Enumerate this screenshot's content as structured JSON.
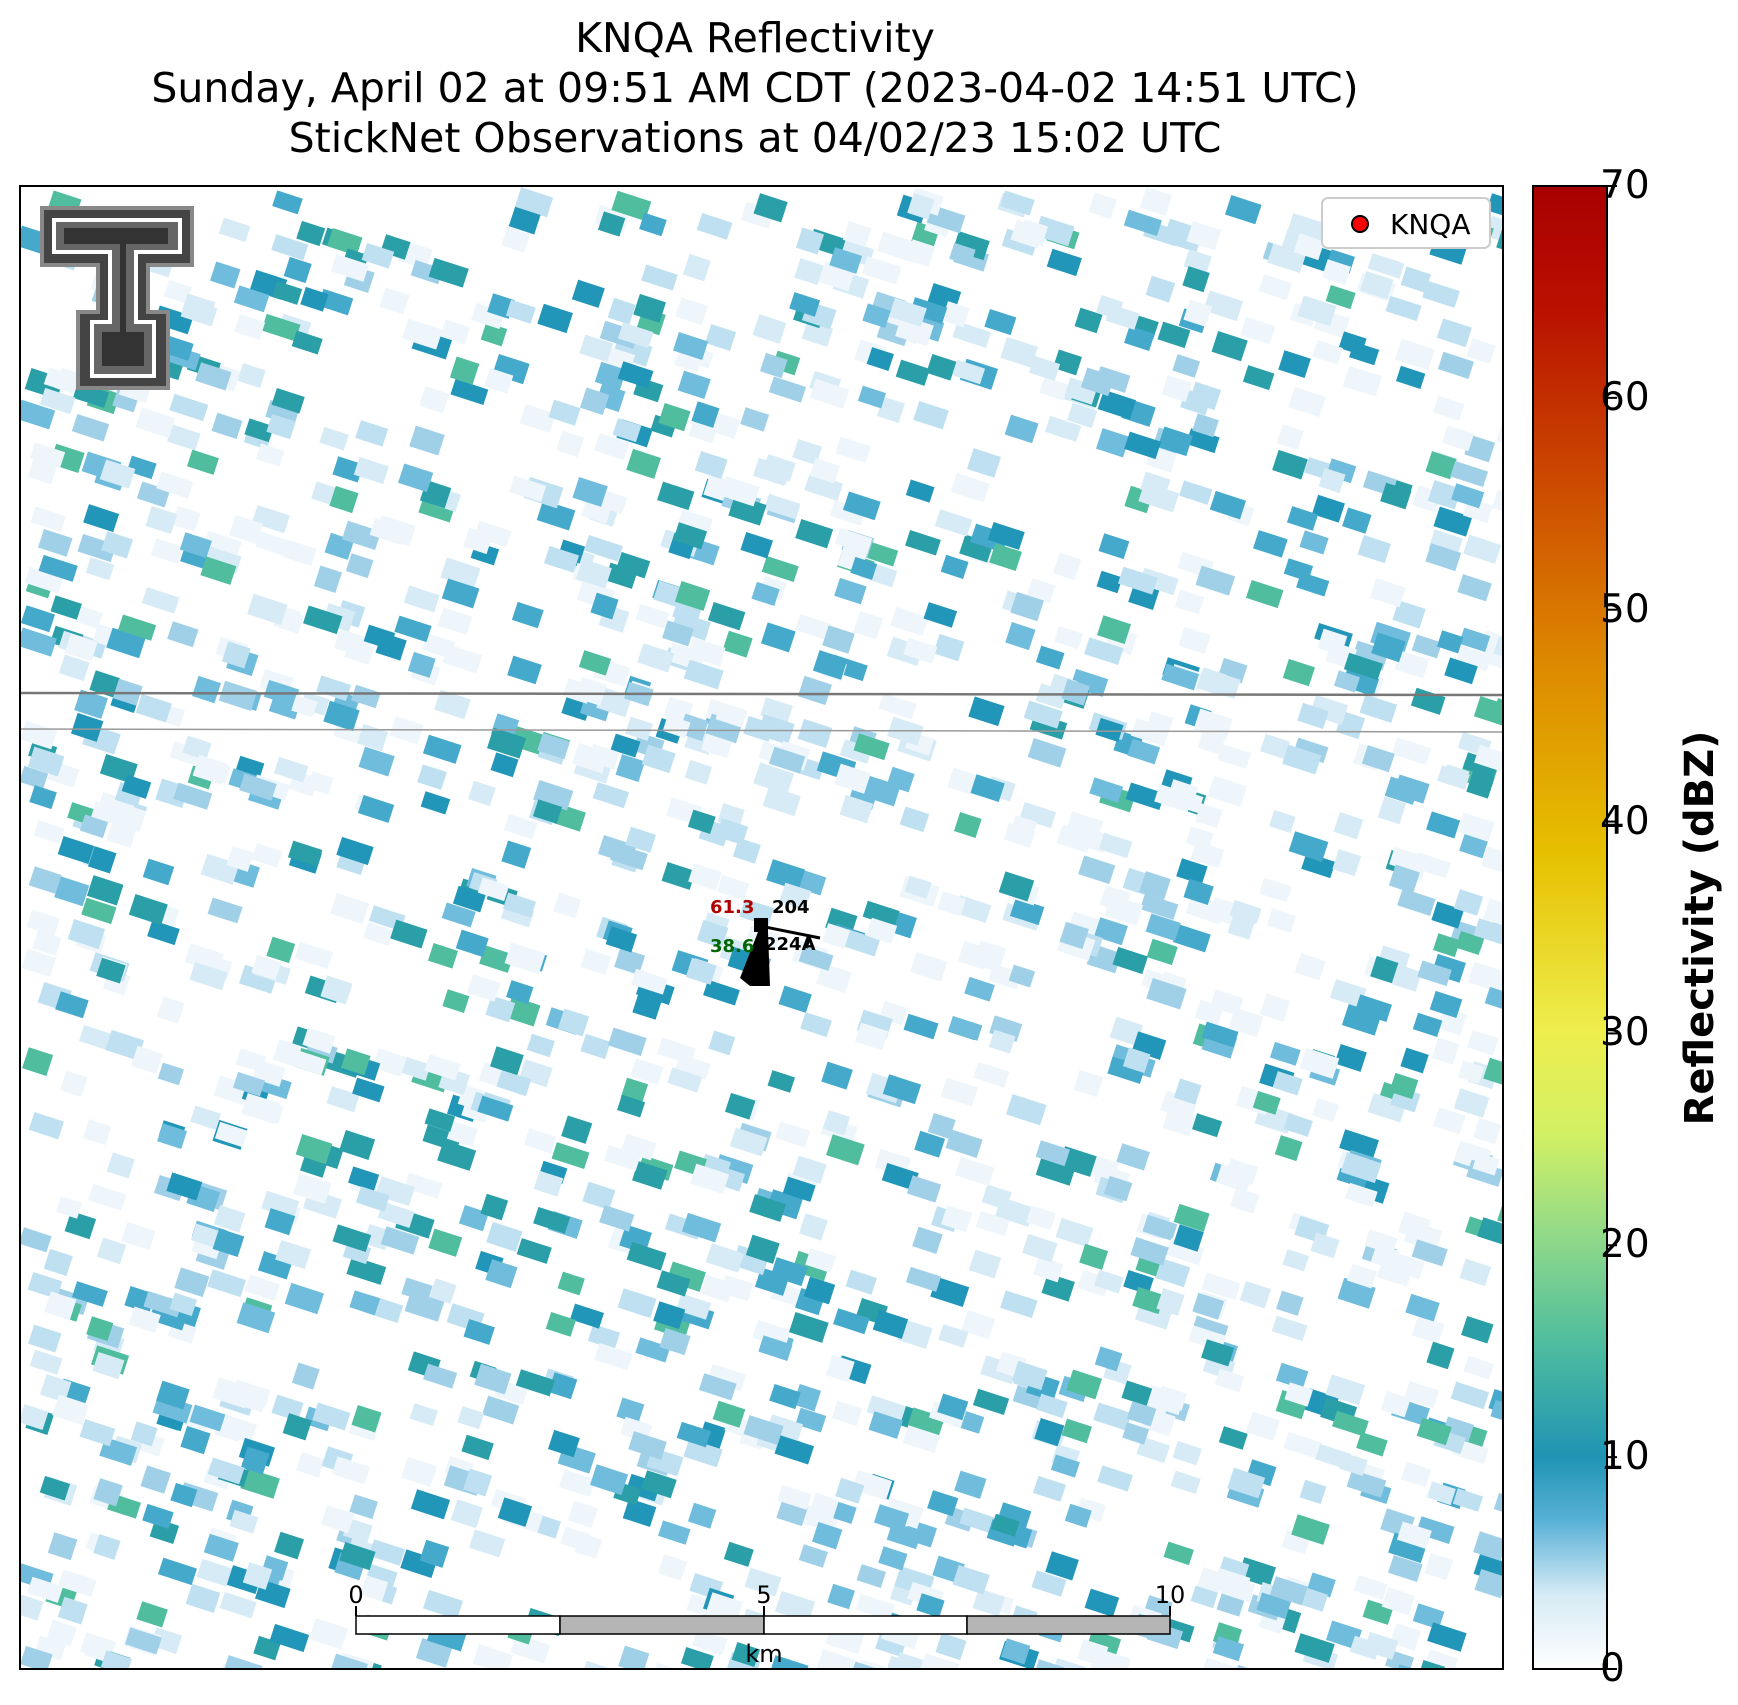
{
  "title": {
    "line1": "KNQA Reflectivity",
    "line2": "Sunday, April 02 at 09:51 AM CDT (2023-04-02 14:51 UTC)",
    "line3": "StickNet Observations at 04/02/23 15:02 UTC"
  },
  "legend": {
    "marker_color": "#ff0000",
    "label": "KNQA"
  },
  "station": {
    "id": "204",
    "temperature": "61.3",
    "dewpoint": "38.6",
    "pressure_code": "224A",
    "temperature_color": "#b00000",
    "dewpoint_color": "#006400"
  },
  "scale_bar": {
    "ticks": [
      "0",
      "5",
      "10"
    ],
    "unit": "km"
  },
  "colorbar": {
    "label": "Reflectivity (dBZ)",
    "min": 0,
    "max": 70,
    "ticks": [
      "0",
      "10",
      "20",
      "30",
      "40",
      "50",
      "60",
      "70"
    ],
    "colors": [
      "#ffffff",
      "#2196b8",
      "#6dc9a0",
      "#e8f55a",
      "#e6b400",
      "#d25a00",
      "#aa0000"
    ]
  },
  "logo": {
    "name": "Texas Tech Double-T"
  }
}
